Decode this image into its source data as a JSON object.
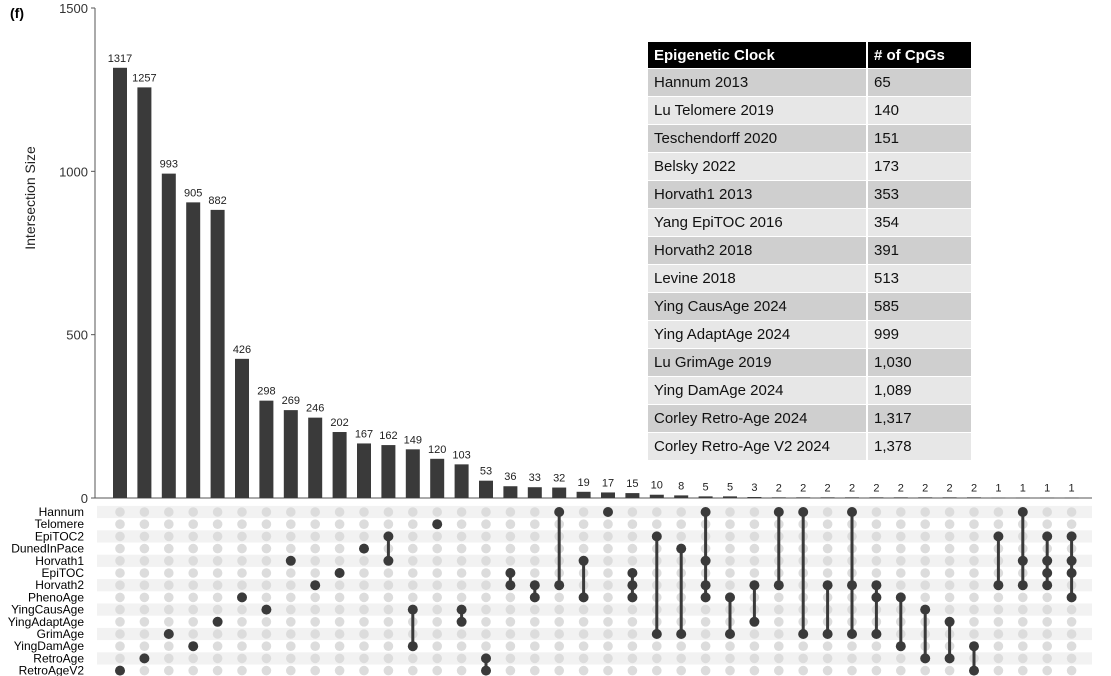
{
  "panel_label": "(f)",
  "chart_data": {
    "type": "upset",
    "ylabel": "Intersection Size",
    "ylim": [
      0,
      1500
    ],
    "yticks": [
      0,
      500,
      1000,
      1500
    ],
    "sets": [
      "Hannum",
      "Telomere",
      "EpiTOC2",
      "DunedInPace",
      "Horvath1",
      "EpiTOC",
      "Horvath2",
      "PhenoAge",
      "YingCausAge",
      "YingAdaptAge",
      "GrimAge",
      "YingDamAge",
      "RetroAge",
      "RetroAgeV2"
    ],
    "intersections": [
      {
        "size": 1317,
        "members": [
          "RetroAgeV2"
        ]
      },
      {
        "size": 1257,
        "members": [
          "RetroAge"
        ]
      },
      {
        "size": 993,
        "members": [
          "GrimAge"
        ]
      },
      {
        "size": 905,
        "members": [
          "YingDamAge"
        ]
      },
      {
        "size": 882,
        "members": [
          "YingAdaptAge"
        ]
      },
      {
        "size": 426,
        "members": [
          "PhenoAge"
        ]
      },
      {
        "size": 298,
        "members": [
          "YingCausAge"
        ]
      },
      {
        "size": 269,
        "members": [
          "Horvath1"
        ]
      },
      {
        "size": 246,
        "members": [
          "Horvath2"
        ]
      },
      {
        "size": 202,
        "members": [
          "EpiTOC"
        ]
      },
      {
        "size": 167,
        "members": [
          "DunedInPace"
        ]
      },
      {
        "size": 162,
        "members": [
          "EpiTOC2",
          "Horvath1"
        ]
      },
      {
        "size": 149,
        "members": [
          "YingCausAge",
          "YingDamAge"
        ]
      },
      {
        "size": 120,
        "members": [
          "Telomere"
        ]
      },
      {
        "size": 103,
        "members": [
          "YingCausAge",
          "YingAdaptAge"
        ]
      },
      {
        "size": 53,
        "members": [
          "RetroAge",
          "RetroAgeV2"
        ]
      },
      {
        "size": 36,
        "members": [
          "EpiTOC",
          "Horvath2"
        ]
      },
      {
        "size": 33,
        "members": [
          "Horvath2",
          "PhenoAge"
        ]
      },
      {
        "size": 32,
        "members": [
          "Hannum",
          "Horvath2"
        ]
      },
      {
        "size": 19,
        "members": [
          "Horvath1",
          "PhenoAge"
        ]
      },
      {
        "size": 17,
        "members": [
          "Hannum"
        ]
      },
      {
        "size": 15,
        "members": [
          "EpiTOC",
          "Horvath2",
          "PhenoAge"
        ]
      },
      {
        "size": 10,
        "members": [
          "EpiTOC2",
          "GrimAge"
        ]
      },
      {
        "size": 8,
        "members": [
          "DunedInPace",
          "GrimAge"
        ]
      },
      {
        "size": 5,
        "members": [
          "Hannum",
          "Horvath1",
          "Horvath2",
          "PhenoAge"
        ]
      },
      {
        "size": 5,
        "members": [
          "PhenoAge",
          "GrimAge"
        ]
      },
      {
        "size": 3,
        "members": [
          "Horvath2",
          "YingAdaptAge"
        ]
      },
      {
        "size": 2,
        "members": [
          "Hannum",
          "Horvath2"
        ]
      },
      {
        "size": 2,
        "members": [
          "Hannum",
          "GrimAge"
        ]
      },
      {
        "size": 2,
        "members": [
          "Horvath2",
          "GrimAge"
        ]
      },
      {
        "size": 2,
        "members": [
          "Hannum",
          "Horvath2",
          "GrimAge"
        ]
      },
      {
        "size": 2,
        "members": [
          "Horvath2",
          "PhenoAge",
          "GrimAge"
        ]
      },
      {
        "size": 2,
        "members": [
          "PhenoAge",
          "YingDamAge"
        ]
      },
      {
        "size": 2,
        "members": [
          "YingCausAge",
          "RetroAge"
        ]
      },
      {
        "size": 2,
        "members": [
          "YingAdaptAge",
          "RetroAge"
        ]
      },
      {
        "size": 2,
        "members": [
          "YingDamAge",
          "RetroAgeV2"
        ]
      },
      {
        "size": 1,
        "members": [
          "EpiTOC2",
          "Horvath2"
        ]
      },
      {
        "size": 1,
        "members": [
          "Hannum",
          "Horvath1",
          "Horvath2"
        ]
      },
      {
        "size": 1,
        "members": [
          "EpiTOC2",
          "Horvath1",
          "EpiTOC",
          "Horvath2"
        ]
      },
      {
        "size": 1,
        "members": [
          "EpiTOC2",
          "Horvath1",
          "EpiTOC",
          "PhenoAge"
        ]
      }
    ]
  },
  "table": {
    "headers": [
      "Epigenetic Clock",
      "# of CpGs"
    ],
    "rows": [
      [
        "Hannum 2013",
        "65"
      ],
      [
        "Lu Telomere 2019",
        "140"
      ],
      [
        "Teschendorff 2020",
        "151"
      ],
      [
        "Belsky 2022",
        "173"
      ],
      [
        "Horvath1 2013",
        "353"
      ],
      [
        "Yang EpiTOC 2016",
        "354"
      ],
      [
        "Horvath2 2018",
        "391"
      ],
      [
        "Levine 2018",
        "513"
      ],
      [
        "Ying CausAge 2024",
        "585"
      ],
      [
        "Ying AdaptAge 2024",
        "999"
      ],
      [
        "Lu GrimAge 2019",
        "1,030"
      ],
      [
        "Ying DamAge 2024",
        "1,089"
      ],
      [
        "Corley Retro-Age 2024",
        "1,317"
      ],
      [
        "Corley Retro-Age V2 2024",
        "1,378"
      ]
    ]
  },
  "colors": {
    "bar": "#3a3a3a",
    "dot_active": "#3a3a3a",
    "dot_inactive": "#dcdcdc",
    "stripe": "#f2f2f2"
  }
}
